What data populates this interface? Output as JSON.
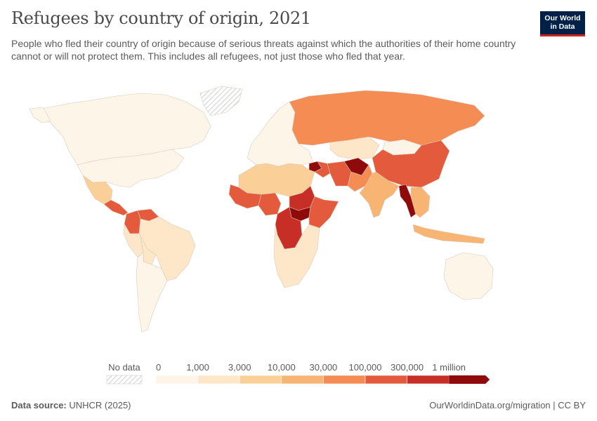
{
  "header": {
    "title": "Refugees by country of origin, 2021",
    "subtitle": "People who fled their country of origin because of serious threats against which the authorities of their home country cannot or will not protect them. This includes all refugees, not just those who fled that year.",
    "logo_line1": "Our World",
    "logo_line2": "in Data"
  },
  "legend": {
    "no_data_label": "No data",
    "bins": [
      {
        "label": "0",
        "color": "#fef5e9"
      },
      {
        "label": "1,000",
        "color": "#fde7c8"
      },
      {
        "label": "3,000",
        "color": "#fbcf98"
      },
      {
        "label": "10,000",
        "color": "#f8b473"
      },
      {
        "label": "30,000",
        "color": "#f48c54"
      },
      {
        "label": "100,000",
        "color": "#e45a3c"
      },
      {
        "label": "300,000",
        "color": "#c72e25"
      },
      {
        "label": "1 million",
        "color": "#8f0a0a"
      }
    ]
  },
  "footer": {
    "source_label": "Data source:",
    "source_value": "UNHCR (2025)",
    "url": "OurWorldinData.org/migration | CC BY"
  },
  "colors": {
    "no_data_hatch": "#cfcfcf",
    "background": "#ffffff",
    "logo_bg": "#002147",
    "logo_accent": "#ce261e"
  },
  "regions": [
    {
      "name": "canada",
      "level": 0
    },
    {
      "name": "united-states",
      "level": 0
    },
    {
      "name": "alaska",
      "level": 0
    },
    {
      "name": "greenland",
      "level": -1
    },
    {
      "name": "mexico",
      "level": 2
    },
    {
      "name": "central-america",
      "level": 5
    },
    {
      "name": "colombia",
      "level": 5
    },
    {
      "name": "venezuela",
      "level": 5
    },
    {
      "name": "brazil",
      "level": 1
    },
    {
      "name": "peru",
      "level": 1
    },
    {
      "name": "bolivia",
      "level": 1
    },
    {
      "name": "argentina-chile",
      "level": 0
    },
    {
      "name": "russia",
      "level": 4
    },
    {
      "name": "europe",
      "level": 0
    },
    {
      "name": "kazakhstan",
      "level": 1
    },
    {
      "name": "mongolia",
      "level": 0
    },
    {
      "name": "china",
      "level": 5
    },
    {
      "name": "syria",
      "level": 7
    },
    {
      "name": "iraq",
      "level": 5
    },
    {
      "name": "iran",
      "level": 5
    },
    {
      "name": "afghanistan",
      "level": 7
    },
    {
      "name": "pakistan",
      "level": 4
    },
    {
      "name": "india",
      "level": 3
    },
    {
      "name": "myanmar",
      "level": 7
    },
    {
      "name": "southeast-asia",
      "level": 3
    },
    {
      "name": "indonesia",
      "level": 3
    },
    {
      "name": "north-africa",
      "level": 2
    },
    {
      "name": "mauritania-mali",
      "level": 5
    },
    {
      "name": "nigeria",
      "level": 5
    },
    {
      "name": "sudan",
      "level": 6
    },
    {
      "name": "south-sudan",
      "level": 7
    },
    {
      "name": "dr-congo",
      "level": 6
    },
    {
      "name": "ethiopia-somalia",
      "level": 5
    },
    {
      "name": "southern-africa",
      "level": 1
    },
    {
      "name": "australia",
      "level": 0
    }
  ]
}
